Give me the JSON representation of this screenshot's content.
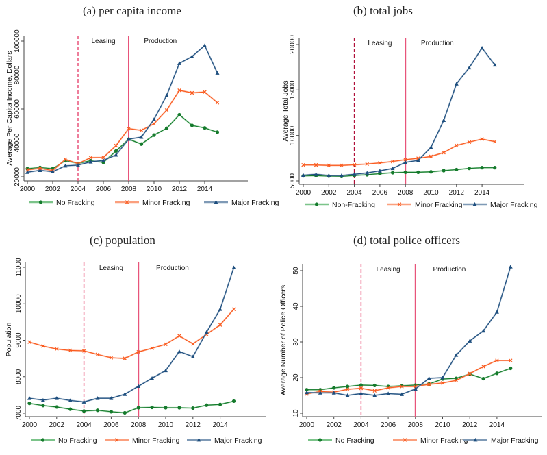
{
  "colors": {
    "none": "#157a2c",
    "minor": "#fa5a1e",
    "major": "#1d4e7e",
    "none_light": "#7cc48a",
    "minor_light": "#fba07e",
    "major_light": "#7f9ab6",
    "leasing_line": "#e8547a",
    "production_line": "#e8547a",
    "leasing_line_b": "#b0103a"
  },
  "chart_data": [
    {
      "id": "a",
      "type": "line",
      "title": "(a) per capita income",
      "xlabel": "",
      "ylabel": "Average Per Capita Income, Dollars",
      "x": [
        2000,
        2001,
        2002,
        2003,
        2004,
        2005,
        2006,
        2007,
        2008,
        2009,
        2010,
        2011,
        2012,
        2013,
        2014,
        2015
      ],
      "x_ticks": [
        "2000",
        "2002",
        "2004",
        "2006",
        "2008",
        "2010",
        "2012",
        "2014"
      ],
      "y_ticks": [
        "20000",
        "40000",
        "60000",
        "80000",
        "100000"
      ],
      "ylim": [
        20000,
        100000
      ],
      "xlim": [
        2000,
        2017.5
      ],
      "grid": false,
      "annotations": {
        "leasing_label": "Leasing",
        "production_label": "Production",
        "leasing_year": 2004,
        "production_year": 2008
      },
      "legend": [
        "No Fracking",
        "Minor Fracking",
        "Major Fracking"
      ],
      "legend_position": "bottom",
      "series": [
        {
          "name": "No Fracking",
          "key": "none",
          "values": [
            24800,
            25500,
            24800,
            29500,
            27900,
            29500,
            28500,
            35200,
            42200,
            39300,
            44600,
            48600,
            56600,
            50300,
            48800,
            46300
          ]
        },
        {
          "name": "Minor Fracking",
          "key": "minor",
          "values": [
            24100,
            25000,
            23700,
            30300,
            27800,
            31300,
            31400,
            38400,
            48400,
            47400,
            51300,
            59300,
            71000,
            69500,
            70000,
            63700
          ]
        },
        {
          "name": "Major Fracking",
          "key": "major",
          "values": [
            22700,
            23800,
            23000,
            26500,
            26900,
            28800,
            29700,
            32900,
            42200,
            43400,
            53900,
            68000,
            86900,
            90900,
            97400,
            81200
          ]
        }
      ]
    },
    {
      "id": "b",
      "type": "line",
      "title": "(b) total jobs",
      "xlabel": "",
      "ylabel": "Average Total Jobs",
      "x": [
        2000,
        2001,
        2002,
        2003,
        2004,
        2005,
        2006,
        2007,
        2008,
        2009,
        2010,
        2011,
        2012,
        2013,
        2014,
        2015
      ],
      "x_ticks": [
        "2000",
        "2002",
        "2004",
        "2006",
        "2008",
        "2010",
        "2012",
        "2014"
      ],
      "y_ticks": [
        "5000",
        "10000",
        "15000",
        "20000"
      ],
      "ylim": [
        5000,
        20000
      ],
      "xlim": [
        2000,
        2017.5
      ],
      "grid": false,
      "annotations": {
        "leasing_label": "Leasing",
        "production_label": "Production",
        "leasing_year": 2004,
        "production_year": 2008
      },
      "legend": [
        "Non-Fracking",
        "Minor Fracking",
        "Major Fracking"
      ],
      "legend_position": "bottom",
      "series": [
        {
          "name": "Non-Fracking",
          "key": "none",
          "values": [
            5550,
            5580,
            5530,
            5500,
            5600,
            5680,
            5800,
            5900,
            5950,
            5950,
            6000,
            6130,
            6250,
            6380,
            6460,
            6460
          ]
        },
        {
          "name": "Minor Fracking",
          "key": "minor",
          "values": [
            6760,
            6760,
            6710,
            6710,
            6780,
            6860,
            6980,
            7140,
            7340,
            7490,
            7690,
            8120,
            8890,
            9270,
            9600,
            9320
          ]
        },
        {
          "name": "Major Fracking",
          "key": "major",
          "values": [
            5630,
            5730,
            5600,
            5600,
            5730,
            5880,
            6110,
            6380,
            7040,
            7260,
            8690,
            11660,
            15680,
            17460,
            19620,
            17760
          ]
        }
      ]
    },
    {
      "id": "c",
      "type": "line",
      "title": "(c) population",
      "xlabel": "",
      "ylabel": "Population",
      "x": [
        2000,
        2001,
        2002,
        2003,
        2004,
        2005,
        2006,
        2007,
        2008,
        2009,
        2010,
        2011,
        2012,
        2013,
        2014,
        2015
      ],
      "x_ticks": [
        "2000",
        "2002",
        "2004",
        "2006",
        "2008",
        "2010",
        "2012",
        "2014"
      ],
      "y_ticks": [
        "7000",
        "8000",
        "9000",
        "10000",
        "11000"
      ],
      "ylim": [
        7000,
        11000
      ],
      "xlim": [
        2000,
        2017.5
      ],
      "grid": false,
      "annotations": {
        "leasing_label": "Leasing",
        "production_label": "Production",
        "leasing_year": 2004,
        "production_year": 2008
      },
      "legend": [
        "No Fracking",
        "Minor Fracking",
        "Major Fracking"
      ],
      "legend_position": "bottom",
      "series": [
        {
          "name": "No Fracking",
          "key": "none",
          "values": [
            7270,
            7210,
            7170,
            7110,
            7060,
            7080,
            7040,
            7010,
            7150,
            7160,
            7150,
            7150,
            7140,
            7220,
            7240,
            7330
          ]
        },
        {
          "name": "Minor Fracking",
          "key": "minor",
          "values": [
            8950,
            8840,
            8760,
            8720,
            8710,
            8610,
            8520,
            8500,
            8680,
            8780,
            8890,
            9120,
            8900,
            9160,
            9420,
            9850
          ]
        },
        {
          "name": "Major Fracking",
          "key": "major",
          "values": [
            7410,
            7360,
            7410,
            7350,
            7310,
            7410,
            7410,
            7520,
            7740,
            7960,
            8170,
            8690,
            8550,
            9220,
            9850,
            10990
          ]
        }
      ]
    },
    {
      "id": "d",
      "type": "line",
      "title": "(d) total police officers",
      "xlabel": "",
      "ylabel": "Average Number of Police Officers",
      "x": [
        2000,
        2001,
        2002,
        2003,
        2004,
        2005,
        2006,
        2007,
        2008,
        2009,
        2010,
        2011,
        2012,
        2013,
        2014,
        2015
      ],
      "x_ticks": [
        "2000",
        "2002",
        "2004",
        "2006",
        "2008",
        "2010",
        "2012",
        "2014"
      ],
      "y_ticks": [
        "10",
        "20",
        "30",
        "40",
        "50"
      ],
      "ylim": [
        10,
        50
      ],
      "xlim": [
        2000,
        2017.5
      ],
      "grid": false,
      "annotations": {
        "leasing_label": "Leasing",
        "production_label": "Production",
        "leasing_year": 2004,
        "production_year": 2008
      },
      "legend": [
        "No Fracking",
        "Minor Fracking",
        "Major Fracking"
      ],
      "legend_position": "bottom",
      "series": [
        {
          "name": "No Fracking",
          "key": "none",
          "values": [
            16.6,
            16.6,
            17.1,
            17.5,
            17.9,
            17.8,
            17.5,
            17.7,
            17.9,
            18.2,
            19.6,
            19.8,
            21.0,
            19.7,
            21.2,
            22.6
          ]
        },
        {
          "name": "Minor Fracking",
          "key": "minor",
          "values": [
            15.4,
            16.1,
            15.9,
            16.7,
            17.0,
            16.3,
            17.1,
            17.5,
            17.5,
            18.1,
            18.5,
            19.2,
            21.1,
            23.1,
            24.8,
            24.8
          ]
        },
        {
          "name": "Major Fracking",
          "key": "major",
          "values": [
            15.8,
            15.7,
            15.7,
            15.0,
            15.5,
            15.0,
            15.5,
            15.3,
            16.8,
            19.8,
            20.0,
            26.3,
            30.3,
            33.1,
            38.4,
            51.1
          ]
        }
      ]
    }
  ]
}
